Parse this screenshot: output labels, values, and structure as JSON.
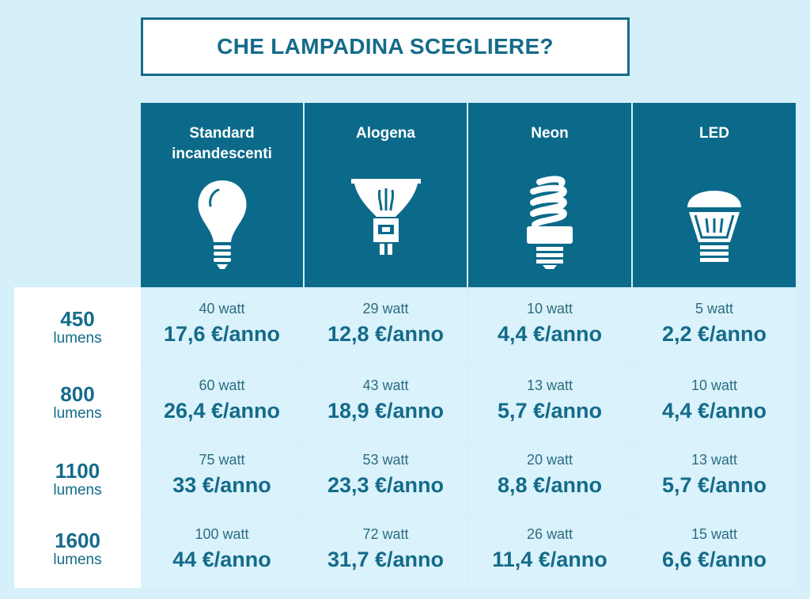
{
  "title": "CHE LAMPADINA SCEGLIERE?",
  "columns": [
    {
      "label": "Standard\nincandescenti",
      "icon": "incandescent-bulb-icon"
    },
    {
      "label": "Alogena",
      "icon": "halogen-bulb-icon"
    },
    {
      "label": "Neon",
      "icon": "cfl-bulb-icon"
    },
    {
      "label": "LED",
      "icon": "led-bulb-icon"
    }
  ],
  "rows": [
    {
      "lumens": "450",
      "unit": "lumens",
      "cells": [
        {
          "watt": "40 watt",
          "cost": "17,6 €/anno"
        },
        {
          "watt": "29 watt",
          "cost": "12,8 €/anno"
        },
        {
          "watt": "10 watt",
          "cost": "4,4 €/anno"
        },
        {
          "watt": "5 watt",
          "cost": "2,2 €/anno"
        }
      ]
    },
    {
      "lumens": "800",
      "unit": "lumens",
      "cells": [
        {
          "watt": "60 watt",
          "cost": "26,4 €/anno"
        },
        {
          "watt": "43 watt",
          "cost": "18,9 €/anno"
        },
        {
          "watt": "13 watt",
          "cost": "5,7 €/anno"
        },
        {
          "watt": "10 watt",
          "cost": "4,4 €/anno"
        }
      ]
    },
    {
      "lumens": "1100",
      "unit": "lumens",
      "cells": [
        {
          "watt": "75 watt",
          "cost": "33 €/anno"
        },
        {
          "watt": "53 watt",
          "cost": "23,3 €/anno"
        },
        {
          "watt": "20 watt",
          "cost": "8,8 €/anno"
        },
        {
          "watt": "13 watt",
          "cost": "5,7 €/anno"
        }
      ]
    },
    {
      "lumens": "1600",
      "unit": "lumens",
      "cells": [
        {
          "watt": "100 watt",
          "cost": "44 €/anno"
        },
        {
          "watt": "72 watt",
          "cost": "31,7 €/anno"
        },
        {
          "watt": "26 watt",
          "cost": "11,4 €/anno"
        },
        {
          "watt": "15 watt",
          "cost": "6,6 €/anno"
        }
      ]
    }
  ],
  "colors": {
    "primary": "#0b6a8a",
    "text": "#146b8a",
    "cell": "#daf2fb",
    "background": "#d6f0f9"
  }
}
